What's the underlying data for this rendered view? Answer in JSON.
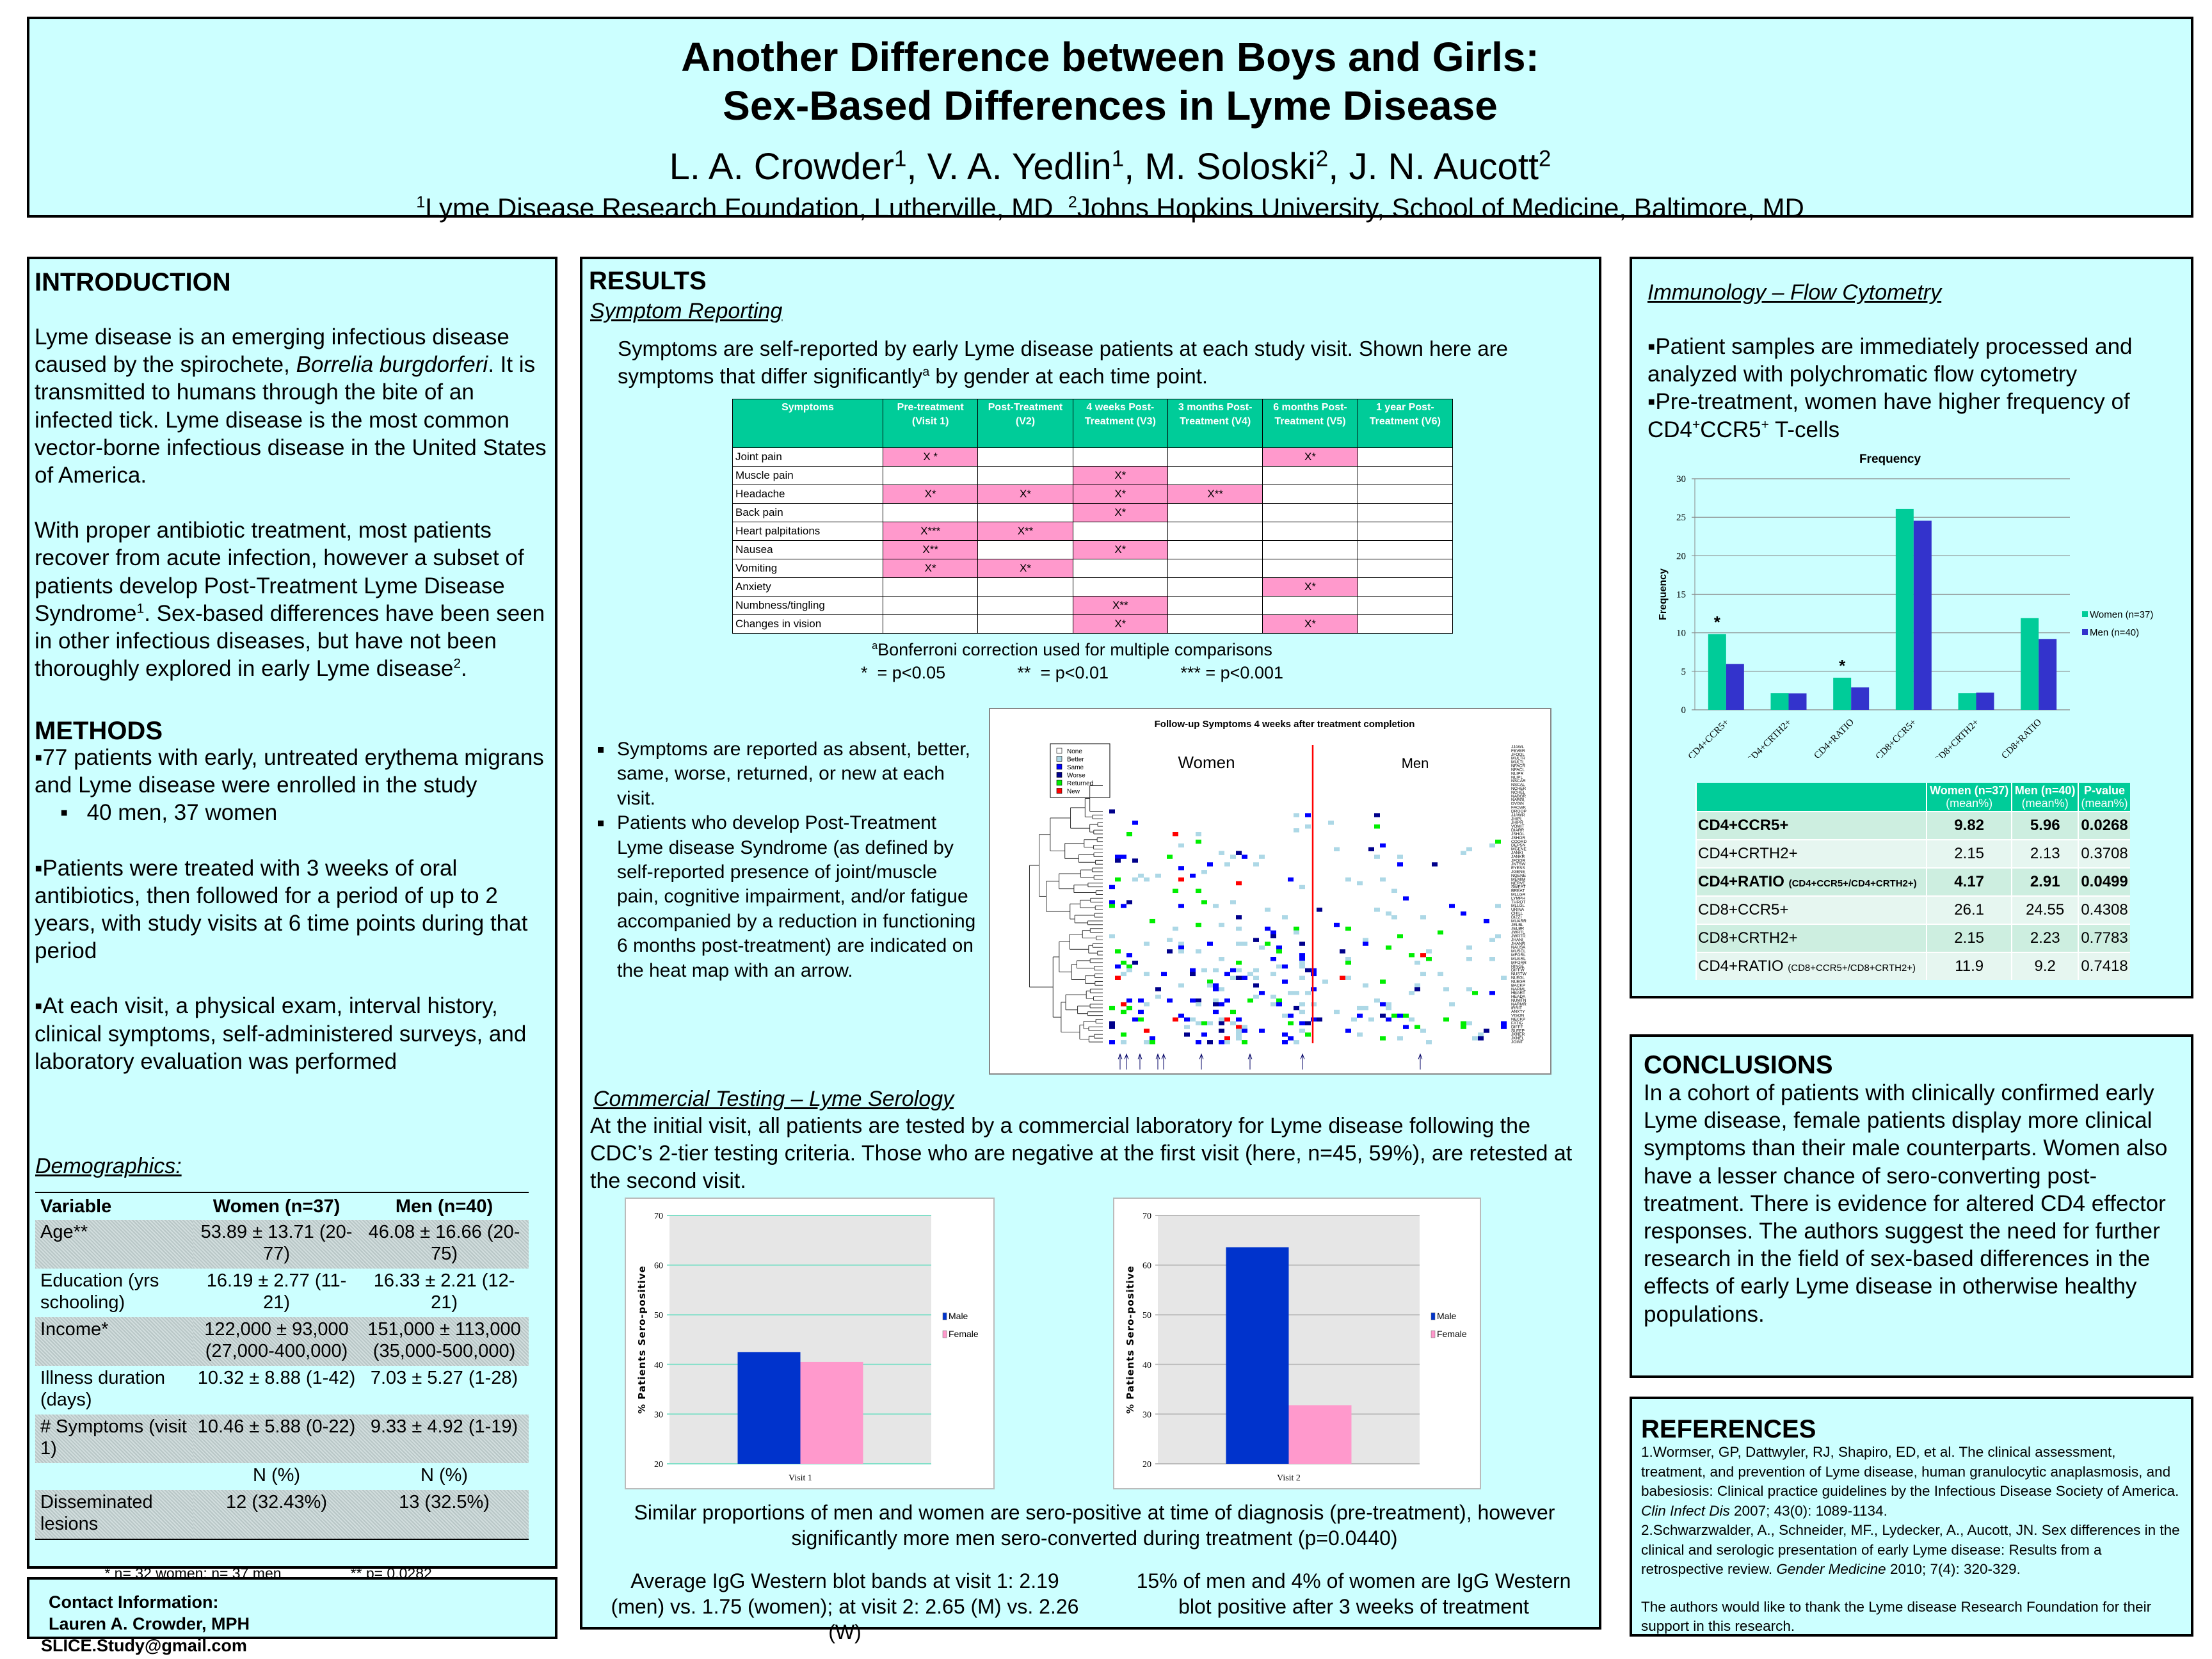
{
  "header": {
    "title_line1": "Another Difference between Boys and Girls:",
    "title_line2": "Sex-Based Differences in Lyme Disease",
    "authors": [
      {
        "name": "L. A. Crowder",
        "sup": "1"
      },
      {
        "name": "V. A. Yedlin",
        "sup": "1"
      },
      {
        "name": "M. Soloski",
        "sup": "2"
      },
      {
        "name": "J. N. Aucott",
        "sup": "2"
      }
    ],
    "affiliations": [
      {
        "sup": "1",
        "text": "Lyme Disease Research Foundation, Lutherville, MD"
      },
      {
        "sup": "2",
        "text": "Johns Hopkins University, School of Medicine, Baltimore, MD"
      }
    ]
  },
  "introduction": {
    "heading": "INTRODUCTION",
    "paragraphs": [
      [
        {
          "t": "Lyme disease is an emerging infectious disease caused by the spirochete, "
        },
        {
          "t": "Borrelia burgdorferi",
          "i": true
        },
        {
          "t": ". It is transmitted to humans through the bite of an infected tick. Lyme disease is the most common vector-borne infectious disease in the United States of America."
        }
      ],
      [
        {
          "t": "With proper antibiotic treatment, most patients recover from acute infection, however a subset of patients develop Post-Treatment Lyme Disease Syndrome"
        },
        {
          "t": "1",
          "s": true
        },
        {
          "t": ". Sex-based differences have been seen in other infectious diseases, but have not been thoroughly explored in early Lyme disease"
        },
        {
          "t": "2",
          "s": true
        },
        {
          "t": "."
        }
      ]
    ]
  },
  "methods": {
    "heading": "METHODS",
    "items": [
      "77 patients with early, untreated erythema migrans and Lyme disease were enrolled in the study",
      "Patients were treated with 3 weeks of oral antibiotics, then followed for a period of up to 2 years, with study visits at 6 time points during that period",
      "At each visit, a physical exam, interval history, clinical symptoms, self-administered surveys, and laboratory evaluation was performed"
    ],
    "subitem": "40 men, 37 women"
  },
  "demographics": {
    "heading": "Demographics:",
    "columns": [
      "Variable",
      "Women (n=37)",
      "Men (n=40)"
    ],
    "rows": [
      {
        "label": "Age**",
        "women": "53.89 ± 13.71 (20-77)",
        "men": "46.08 ± 16.66 (20-75)",
        "shade": true
      },
      {
        "label": "Education (yrs schooling)",
        "women": "16.19 ± 2.77 (11-21)",
        "men": "16.33 ± 2.21 (12-21)",
        "shade": false
      },
      {
        "label": "Income*",
        "women": "122,000 ± 93,000 (27,000-400,000)",
        "men": "151,000 ± 113,000 (35,000-500,000)",
        "shade": true
      },
      {
        "label": "Illness duration (days)",
        "women": "10.32 ± 8.88 (1-42)",
        "men": "7.03 ± 5.27 (1-28)",
        "shade": false
      },
      {
        "label": "# Symptoms (visit 1)",
        "women": "10.46 ± 5.88 (0-22)",
        "men": "9.33 ± 4.92 (1-19)",
        "shade": true
      },
      {
        "label": "",
        "women": "N (%)",
        "men": "N (%)",
        "shade": false
      },
      {
        "label": "Disseminated lesions",
        "women": "12 (32.43%)",
        "men": "13 (32.5%)",
        "shade": true
      }
    ],
    "footnote_1": "* n= 32 women; n= 37 men",
    "footnote_2": "** p= 0.0282"
  },
  "contact": {
    "heading": "Contact Information:",
    "name": "Lauren A. Crowder, MPH",
    "email": "SLICE.Study@gmail.com"
  },
  "results": {
    "heading": "RESULTS",
    "symptom_heading": "Symptom Reporting",
    "symptom_text_a": "Symptoms are self-reported by early Lyme disease patients at each study visit. Shown here are symptoms that differ significantly",
    "symptom_text_sup": "a",
    "symptom_text_b": " by gender at each time point.",
    "symptom_table": {
      "columns": [
        "Symptoms",
        "Pre-treatment (Visit 1)",
        "Post-Treatment (V2)",
        "4 weeks Post-Treatment (V3)",
        "3 months Post-Treatment (V4)",
        "6 months Post-Treatment (V5)",
        "1 year Post-Treatment (V6)"
      ],
      "rows": [
        {
          "label": "Joint pain",
          "cells": [
            "X *",
            "",
            "",
            "",
            "X*",
            ""
          ]
        },
        {
          "label": "Muscle pain",
          "cells": [
            "",
            "",
            "X*",
            "",
            "",
            ""
          ]
        },
        {
          "label": "Headache",
          "cells": [
            "X*",
            "X*",
            "X*",
            "X**",
            "",
            ""
          ]
        },
        {
          "label": "Back pain",
          "cells": [
            "",
            "",
            "X*",
            "",
            "",
            ""
          ]
        },
        {
          "label": "Heart palpitations",
          "cells": [
            "X***",
            "X**",
            "",
            "",
            "",
            ""
          ]
        },
        {
          "label": "Nausea",
          "cells": [
            "X**",
            "",
            "X*",
            "",
            "",
            ""
          ]
        },
        {
          "label": "Vomiting",
          "cells": [
            "X*",
            "X*",
            "",
            "",
            "",
            ""
          ]
        },
        {
          "label": "Anxiety",
          "cells": [
            "",
            "",
            "",
            "",
            "X*",
            ""
          ]
        },
        {
          "label": "Numbness/tingling",
          "cells": [
            "",
            "",
            "X**",
            "",
            "",
            ""
          ]
        },
        {
          "label": "Changes in vision",
          "cells": [
            "",
            "",
            "X*",
            "",
            "X*",
            ""
          ]
        }
      ],
      "footnote_sup": "a",
      "footnote": "Bonferroni correction used for multiple comparisons",
      "sig_1": "*  = p<0.05",
      "sig_2": "**  = p<0.01",
      "sig_3": "*** = p<0.001"
    },
    "bullets": [
      "Symptoms are reported as absent, better, same, worse, returned, or new at each visit.",
      "Patients who develop Post-Treatment Lyme disease Syndrome (as defined by self-reported presence of joint/muscle pain, cognitive impairment, and/or fatigue accompanied by a reduction in functioning 6 months post-treatment) are indicated on the heat map with an arrow."
    ],
    "heatmap": {
      "title": "Follow-up Symptoms 4 weeks after treatment completion",
      "group_women": "Women",
      "group_men": "Men",
      "legend": [
        {
          "label": "None",
          "color": "#ffffff"
        },
        {
          "label": "Better",
          "color": "#add8e6"
        },
        {
          "label": "Same",
          "color": "#0000ff"
        },
        {
          "label": "Worse",
          "color": "#00008b"
        },
        {
          "label": "Returned",
          "color": "#00ee00"
        },
        {
          "label": "New",
          "color": "#ff0000"
        }
      ],
      "row_labels": [
        "JJAWL",
        "FEVER",
        "JFOOL",
        "MULTR",
        "MULTL",
        "NFACR",
        "NFACL",
        "NLIPR",
        "NLIPL",
        "NSCAR",
        "NSCAL",
        "NCHER",
        "NCHEL",
        "NABGR",
        "NABGL",
        "DVISN",
        "FACWK",
        "DROOP",
        "JJAWR",
        "JHIPL",
        "JHIPR",
        "VOMIT",
        "DIARR",
        "JSHOL",
        "JSHOR",
        "COORD",
        "DEPSN",
        "MGENE",
        "JANKL",
        "JANKR",
        "JFOOR",
        "JNTSW",
        "EYESS",
        "JGENE",
        "NGENE",
        "MEMIM",
        "NERVE",
        "SWEAT",
        "BREAT",
        "MLLGR",
        "LYMPH",
        "THROT",
        "MLLGL",
        "URINA",
        "CHILL",
        "DIZZI",
        "MUARR",
        "JELBL",
        "JELBR",
        "JWRTL",
        "JWRTR",
        "JHANL",
        "JHANR",
        "NAUSA",
        "MUSCL",
        "MFORL",
        "MUARL",
        "MFORR",
        "RINGE",
        "DIFFW",
        "NUSTW",
        "NLEGL",
        "NLEGR",
        "BACKP",
        "NARML",
        "HEART",
        "HEADA",
        "NUMTN",
        "NARMR",
        "IRRIT",
        "ANXTY",
        "VISON",
        "NECKP",
        "FATIG",
        "DIFFF",
        "SLEEP",
        "JKNER",
        "JKNEL",
        "JOINT"
      ]
    },
    "serology_heading": "Commercial Testing – Lyme Serology",
    "serology_text": "At the initial visit, all patients are tested by a commercial laboratory for Lyme disease following the CDC’s 2-tier testing criteria. Those who are negative at the first visit (here, n=45, 59%), are retested at the second visit.",
    "serology_conclusion": "Similar proportions of men and women are sero-positive at time of diagnosis (pre-treatment), however significantly more men sero-converted during treatment (p=0.0440)",
    "western_blot_1": "Average IgG Western blot bands at visit 1: 2.19 (men) vs. 1.75 (women); at visit 2: 2.65 (M) vs. 2.26 (W)",
    "western_blot_2": "15% of men and 4% of women are IgG Western blot positive after 3 weeks of treatment"
  },
  "immunology": {
    "heading": "Immunology – Flow Cytometry",
    "bullet_1": "Patient samples are immediately processed and analyzed with polychromatic flow cytometry",
    "bullet_2_a": "Pre-treatment, women have higher frequency of CD4",
    "bullet_2_b": "CCR5",
    "bullet_2_c": " T-cells",
    "sup_plus": "+",
    "table": {
      "columns": [
        {
          "l1": "",
          "l2": ""
        },
        {
          "l1": "Women (n=37)",
          "l2": "(mean%)"
        },
        {
          "l1": "Men (n=40)",
          "l2": "(mean%)"
        },
        {
          "l1": "P-value",
          "l2": "(mean%)"
        }
      ],
      "rows": [
        {
          "label": "CD4+CCR5+",
          "note": "",
          "women": "9.82",
          "men": "5.96",
          "p": "0.0268",
          "bold": true
        },
        {
          "label": "CD4+CRTH2+",
          "note": "",
          "women": "2.15",
          "men": "2.13",
          "p": "0.3708",
          "bold": false
        },
        {
          "label": "CD4+RATIO",
          "note": "(CD4+CCR5+/CD4+CRTH2+)",
          "women": "4.17",
          "men": "2.91",
          "p": "0.0499",
          "bold": true
        },
        {
          "label": "CD8+CCR5+",
          "note": "",
          "women": "26.1",
          "men": "24.55",
          "p": "0.4308",
          "bold": false
        },
        {
          "label": "CD8+CRTH2+",
          "note": "",
          "women": "2.15",
          "men": "2.23",
          "p": "0.7783",
          "bold": false
        },
        {
          "label": "CD4+RATIO",
          "note": "(CD8+CCR5+/CD8+CRTH2+)",
          "women": "11.9",
          "men": "9.2",
          "p": "0.7418",
          "bold": false
        }
      ]
    }
  },
  "conclusions": {
    "heading": "CONCLUSIONS",
    "text": "In a cohort of patients with clinically confirmed early Lyme disease, female patients display more clinical symptoms than their male counterparts. Women also have a lesser chance of sero-converting post-treatment. There is evidence for altered CD4 effector responses. The authors suggest the need for further research in the field of sex-based differences in the effects of early Lyme disease in otherwise healthy populations."
  },
  "references": {
    "heading": "REFERENCES",
    "items": [
      [
        {
          "t": "1.Wormser, GP, Dattwyler, RJ, Shapiro, ED, et al. The clinical assessment, treatment, and prevention of Lyme disease, human granulocytic anaplasmosis, and babesiosis: Clinical practice guidelines by the Infectious Disease Society of America. "
        },
        {
          "t": "Clin Infect Dis",
          "i": true
        },
        {
          "t": " 2007; 43(0): 1089-1134."
        }
      ],
      [
        {
          "t": "2.Schwarzwalder, A., Schneider, MF., Lydecker, A., Aucott, JN. Sex differences in the clinical and serologic presentation of early Lyme disease: Results from a retrospective review. "
        },
        {
          "t": "Gender Medicine",
          "i": true
        },
        {
          "t": " 2010; 7(4): 320-329."
        }
      ]
    ],
    "acknowledgement": "The authors would like to thank the Lyme disease Research Foundation for their support in this research."
  },
  "chart_data": [
    {
      "type": "bar",
      "title": "Frequency",
      "ylabel": "Frequency",
      "categories": [
        "CD4+CCR5+",
        "CD4+CRTH2+",
        "CD4+RATIO",
        "CD8+CCR5+",
        "CD8+CRTH2+",
        "CD8+RATIO"
      ],
      "series": [
        {
          "name": "Women (n=37)",
          "values": [
            9.82,
            2.15,
            4.17,
            26.1,
            2.15,
            11.9
          ],
          "color": "#00cc99"
        },
        {
          "name": "Men (n=40)",
          "values": [
            5.96,
            2.13,
            2.91,
            24.55,
            2.23,
            9.2
          ],
          "color": "#3333cc"
        }
      ],
      "annotations": [
        {
          "category": "CD4+CCR5+",
          "text": "*"
        },
        {
          "category": "CD4+RATIO",
          "text": "*"
        }
      ],
      "ylim": [
        0,
        30
      ],
      "yticks": [
        0,
        5,
        10,
        15,
        20,
        25,
        30
      ],
      "grid": true,
      "legend": "right"
    },
    {
      "type": "bar",
      "ylabel": "% Patients Sero-positive",
      "categories": [
        "Visit 1"
      ],
      "series": [
        {
          "name": "Male",
          "values": [
            42.5
          ],
          "color": "#0033cc"
        },
        {
          "name": "Female",
          "values": [
            40.5
          ],
          "color": "#ff99cc"
        }
      ],
      "ylim": [
        20,
        70
      ],
      "yticks": [
        20,
        30,
        40,
        50,
        60,
        70
      ],
      "grid": true,
      "gridcolor": "#80dfc8",
      "legend": "right"
    },
    {
      "type": "bar",
      "ylabel": "% Patients Sero-positive",
      "categories": [
        "Visit 2"
      ],
      "series": [
        {
          "name": "Male",
          "values": [
            63.6
          ],
          "color": "#0033cc"
        },
        {
          "name": "Female",
          "values": [
            31.8
          ],
          "color": "#ff99cc"
        }
      ],
      "ylim": [
        20,
        70
      ],
      "yticks": [
        20,
        30,
        40,
        50,
        60,
        70
      ],
      "grid": true,
      "gridcolor": "#bbbbbb",
      "legend": "right"
    }
  ]
}
